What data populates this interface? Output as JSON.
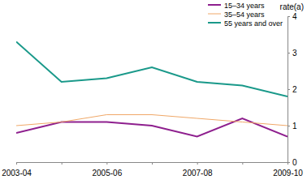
{
  "chart_data": {
    "type": "line",
    "y_label": "rate(a)",
    "categories": [
      "2003-04",
      null,
      "2005-06",
      null,
      "2007-08",
      null,
      "2009-10"
    ],
    "series": [
      {
        "name": "15–34 years",
        "color": "#8e1f8e",
        "values": [
          0.8,
          1.1,
          1.1,
          1.0,
          0.7,
          1.2,
          0.7
        ]
      },
      {
        "name": "35–54 years",
        "color": "#f0a868",
        "values": [
          1.0,
          1.1,
          1.3,
          1.3,
          1.2,
          1.1,
          1.0
        ]
      },
      {
        "name": "55 years and over",
        "color": "#1a998a",
        "values": [
          3.3,
          2.2,
          2.3,
          2.6,
          2.2,
          2.1,
          1.8
        ]
      }
    ],
    "ylim": [
      0,
      4
    ],
    "yticks": [
      0,
      1,
      2,
      3,
      4
    ],
    "grid": false,
    "legend": "top-right"
  }
}
